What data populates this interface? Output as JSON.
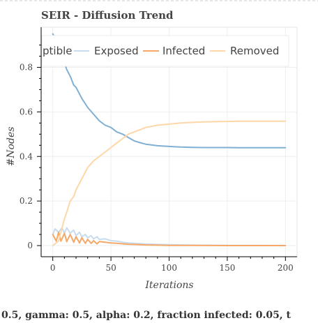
{
  "chart_data": {
    "type": "line",
    "title": "SEIR - Diffusion Trend",
    "xlabel": "Iterations",
    "ylabel": "#Nodes",
    "xlim": [
      -10,
      210
    ],
    "ylim": [
      -0.05,
      0.98
    ],
    "xticks": [
      0,
      50,
      100,
      150,
      200
    ],
    "yticks": [
      0,
      0.2,
      0.4,
      0.6,
      0.8
    ],
    "xtick_labels": [
      "0",
      "50",
      "100",
      "150",
      "200"
    ],
    "ytick_labels": [
      "0",
      "0.2",
      "0.4",
      "0.6",
      "0.8"
    ],
    "grid": true,
    "legend_position": "top-right",
    "series": [
      {
        "name": "Susceptible",
        "color": "#7fb0d4",
        "x": [
          0,
          5,
          8,
          10,
          12,
          15,
          18,
          20,
          25,
          30,
          35,
          40,
          45,
          50,
          55,
          60,
          65,
          70,
          75,
          80,
          90,
          100,
          110,
          120,
          130,
          140,
          150,
          160,
          170,
          180,
          190,
          200
        ],
        "y": [
          0.95,
          0.9,
          0.84,
          0.82,
          0.79,
          0.76,
          0.72,
          0.71,
          0.66,
          0.62,
          0.59,
          0.56,
          0.54,
          0.53,
          0.51,
          0.5,
          0.485,
          0.47,
          0.462,
          0.455,
          0.448,
          0.445,
          0.442,
          0.441,
          0.44,
          0.44,
          0.44,
          0.439,
          0.439,
          0.439,
          0.439,
          0.439
        ]
      },
      {
        "name": "Exposed",
        "color": "#c7dcee",
        "x": [
          0,
          2,
          5,
          8,
          10,
          12,
          15,
          18,
          20,
          23,
          25,
          28,
          30,
          33,
          35,
          38,
          40,
          45,
          50,
          55,
          60,
          65,
          70,
          80,
          90,
          100,
          120,
          150,
          200
        ],
        "y": [
          0.05,
          0.075,
          0.06,
          0.08,
          0.055,
          0.08,
          0.055,
          0.07,
          0.045,
          0.06,
          0.04,
          0.05,
          0.035,
          0.045,
          0.03,
          0.04,
          0.028,
          0.03,
          0.022,
          0.02,
          0.015,
          0.012,
          0.01,
          0.007,
          0.005,
          0.004,
          0.002,
          0.001,
          0.0
        ]
      },
      {
        "name": "Infected",
        "color": "#f5a868",
        "x": [
          0,
          3,
          5,
          7,
          10,
          12,
          15,
          18,
          20,
          23,
          25,
          28,
          30,
          33,
          35,
          38,
          40,
          45,
          50,
          55,
          60,
          65,
          70,
          80,
          90,
          100,
          120,
          150,
          200
        ],
        "y": [
          0.05,
          0.02,
          0.06,
          0.02,
          0.055,
          0.018,
          0.05,
          0.015,
          0.04,
          0.012,
          0.035,
          0.01,
          0.028,
          0.01,
          0.022,
          0.008,
          0.018,
          0.015,
          0.012,
          0.01,
          0.008,
          0.006,
          0.005,
          0.003,
          0.002,
          0.001,
          0.001,
          0.0,
          0.0
        ]
      },
      {
        "name": "Removed",
        "color": "#fdd7a8",
        "x": [
          0,
          5,
          8,
          10,
          12,
          15,
          18,
          20,
          25,
          28,
          30,
          35,
          40,
          45,
          50,
          55,
          60,
          65,
          70,
          75,
          80,
          90,
          100,
          110,
          120,
          130,
          140,
          150,
          160,
          180,
          200
        ],
        "y": [
          0.0,
          0.02,
          0.08,
          0.12,
          0.15,
          0.2,
          0.22,
          0.25,
          0.3,
          0.33,
          0.35,
          0.38,
          0.4,
          0.42,
          0.44,
          0.46,
          0.48,
          0.5,
          0.51,
          0.52,
          0.53,
          0.54,
          0.545,
          0.55,
          0.553,
          0.555,
          0.556,
          0.557,
          0.558,
          0.558,
          0.558
        ]
      }
    ],
    "legend_labels": [
      "ptible",
      "Exposed",
      "Infected",
      "Removed"
    ],
    "caption": "0.5, gamma: 0.5, alpha: 0.2, fraction infected: 0.05, t"
  }
}
